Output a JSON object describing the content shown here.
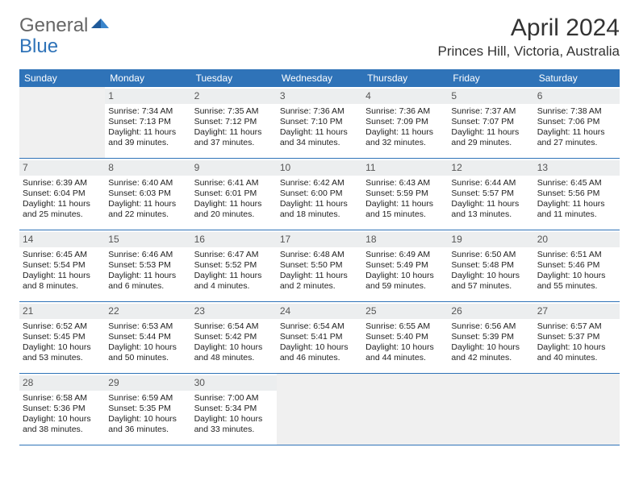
{
  "brand": {
    "part1": "General",
    "part2": "Blue"
  },
  "title": "April 2024",
  "location": "Princes Hill, Victoria, Australia",
  "colors": {
    "header_bg": "#2f73b8",
    "header_text": "#ffffff",
    "daynum_bg": "#eceeef",
    "empty_bg": "#f0f0f0",
    "border": "#2f73b8",
    "text": "#222222",
    "page_bg": "#ffffff"
  },
  "weekdays": [
    "Sunday",
    "Monday",
    "Tuesday",
    "Wednesday",
    "Thursday",
    "Friday",
    "Saturday"
  ],
  "weeks": [
    [
      {
        "empty": true
      },
      {
        "num": "1",
        "sunrise": "Sunrise: 7:34 AM",
        "sunset": "Sunset: 7:13 PM",
        "daylight1": "Daylight: 11 hours",
        "daylight2": "and 39 minutes."
      },
      {
        "num": "2",
        "sunrise": "Sunrise: 7:35 AM",
        "sunset": "Sunset: 7:12 PM",
        "daylight1": "Daylight: 11 hours",
        "daylight2": "and 37 minutes."
      },
      {
        "num": "3",
        "sunrise": "Sunrise: 7:36 AM",
        "sunset": "Sunset: 7:10 PM",
        "daylight1": "Daylight: 11 hours",
        "daylight2": "and 34 minutes."
      },
      {
        "num": "4",
        "sunrise": "Sunrise: 7:36 AM",
        "sunset": "Sunset: 7:09 PM",
        "daylight1": "Daylight: 11 hours",
        "daylight2": "and 32 minutes."
      },
      {
        "num": "5",
        "sunrise": "Sunrise: 7:37 AM",
        "sunset": "Sunset: 7:07 PM",
        "daylight1": "Daylight: 11 hours",
        "daylight2": "and 29 minutes."
      },
      {
        "num": "6",
        "sunrise": "Sunrise: 7:38 AM",
        "sunset": "Sunset: 7:06 PM",
        "daylight1": "Daylight: 11 hours",
        "daylight2": "and 27 minutes."
      }
    ],
    [
      {
        "num": "7",
        "sunrise": "Sunrise: 6:39 AM",
        "sunset": "Sunset: 6:04 PM",
        "daylight1": "Daylight: 11 hours",
        "daylight2": "and 25 minutes."
      },
      {
        "num": "8",
        "sunrise": "Sunrise: 6:40 AM",
        "sunset": "Sunset: 6:03 PM",
        "daylight1": "Daylight: 11 hours",
        "daylight2": "and 22 minutes."
      },
      {
        "num": "9",
        "sunrise": "Sunrise: 6:41 AM",
        "sunset": "Sunset: 6:01 PM",
        "daylight1": "Daylight: 11 hours",
        "daylight2": "and 20 minutes."
      },
      {
        "num": "10",
        "sunrise": "Sunrise: 6:42 AM",
        "sunset": "Sunset: 6:00 PM",
        "daylight1": "Daylight: 11 hours",
        "daylight2": "and 18 minutes."
      },
      {
        "num": "11",
        "sunrise": "Sunrise: 6:43 AM",
        "sunset": "Sunset: 5:59 PM",
        "daylight1": "Daylight: 11 hours",
        "daylight2": "and 15 minutes."
      },
      {
        "num": "12",
        "sunrise": "Sunrise: 6:44 AM",
        "sunset": "Sunset: 5:57 PM",
        "daylight1": "Daylight: 11 hours",
        "daylight2": "and 13 minutes."
      },
      {
        "num": "13",
        "sunrise": "Sunrise: 6:45 AM",
        "sunset": "Sunset: 5:56 PM",
        "daylight1": "Daylight: 11 hours",
        "daylight2": "and 11 minutes."
      }
    ],
    [
      {
        "num": "14",
        "sunrise": "Sunrise: 6:45 AM",
        "sunset": "Sunset: 5:54 PM",
        "daylight1": "Daylight: 11 hours",
        "daylight2": "and 8 minutes."
      },
      {
        "num": "15",
        "sunrise": "Sunrise: 6:46 AM",
        "sunset": "Sunset: 5:53 PM",
        "daylight1": "Daylight: 11 hours",
        "daylight2": "and 6 minutes."
      },
      {
        "num": "16",
        "sunrise": "Sunrise: 6:47 AM",
        "sunset": "Sunset: 5:52 PM",
        "daylight1": "Daylight: 11 hours",
        "daylight2": "and 4 minutes."
      },
      {
        "num": "17",
        "sunrise": "Sunrise: 6:48 AM",
        "sunset": "Sunset: 5:50 PM",
        "daylight1": "Daylight: 11 hours",
        "daylight2": "and 2 minutes."
      },
      {
        "num": "18",
        "sunrise": "Sunrise: 6:49 AM",
        "sunset": "Sunset: 5:49 PM",
        "daylight1": "Daylight: 10 hours",
        "daylight2": "and 59 minutes."
      },
      {
        "num": "19",
        "sunrise": "Sunrise: 6:50 AM",
        "sunset": "Sunset: 5:48 PM",
        "daylight1": "Daylight: 10 hours",
        "daylight2": "and 57 minutes."
      },
      {
        "num": "20",
        "sunrise": "Sunrise: 6:51 AM",
        "sunset": "Sunset: 5:46 PM",
        "daylight1": "Daylight: 10 hours",
        "daylight2": "and 55 minutes."
      }
    ],
    [
      {
        "num": "21",
        "sunrise": "Sunrise: 6:52 AM",
        "sunset": "Sunset: 5:45 PM",
        "daylight1": "Daylight: 10 hours",
        "daylight2": "and 53 minutes."
      },
      {
        "num": "22",
        "sunrise": "Sunrise: 6:53 AM",
        "sunset": "Sunset: 5:44 PM",
        "daylight1": "Daylight: 10 hours",
        "daylight2": "and 50 minutes."
      },
      {
        "num": "23",
        "sunrise": "Sunrise: 6:54 AM",
        "sunset": "Sunset: 5:42 PM",
        "daylight1": "Daylight: 10 hours",
        "daylight2": "and 48 minutes."
      },
      {
        "num": "24",
        "sunrise": "Sunrise: 6:54 AM",
        "sunset": "Sunset: 5:41 PM",
        "daylight1": "Daylight: 10 hours",
        "daylight2": "and 46 minutes."
      },
      {
        "num": "25",
        "sunrise": "Sunrise: 6:55 AM",
        "sunset": "Sunset: 5:40 PM",
        "daylight1": "Daylight: 10 hours",
        "daylight2": "and 44 minutes."
      },
      {
        "num": "26",
        "sunrise": "Sunrise: 6:56 AM",
        "sunset": "Sunset: 5:39 PM",
        "daylight1": "Daylight: 10 hours",
        "daylight2": "and 42 minutes."
      },
      {
        "num": "27",
        "sunrise": "Sunrise: 6:57 AM",
        "sunset": "Sunset: 5:37 PM",
        "daylight1": "Daylight: 10 hours",
        "daylight2": "and 40 minutes."
      }
    ],
    [
      {
        "num": "28",
        "sunrise": "Sunrise: 6:58 AM",
        "sunset": "Sunset: 5:36 PM",
        "daylight1": "Daylight: 10 hours",
        "daylight2": "and 38 minutes."
      },
      {
        "num": "29",
        "sunrise": "Sunrise: 6:59 AM",
        "sunset": "Sunset: 5:35 PM",
        "daylight1": "Daylight: 10 hours",
        "daylight2": "and 36 minutes."
      },
      {
        "num": "30",
        "sunrise": "Sunrise: 7:00 AM",
        "sunset": "Sunset: 5:34 PM",
        "daylight1": "Daylight: 10 hours",
        "daylight2": "and 33 minutes."
      },
      {
        "empty": true
      },
      {
        "empty": true
      },
      {
        "empty": true
      },
      {
        "empty": true
      }
    ]
  ]
}
